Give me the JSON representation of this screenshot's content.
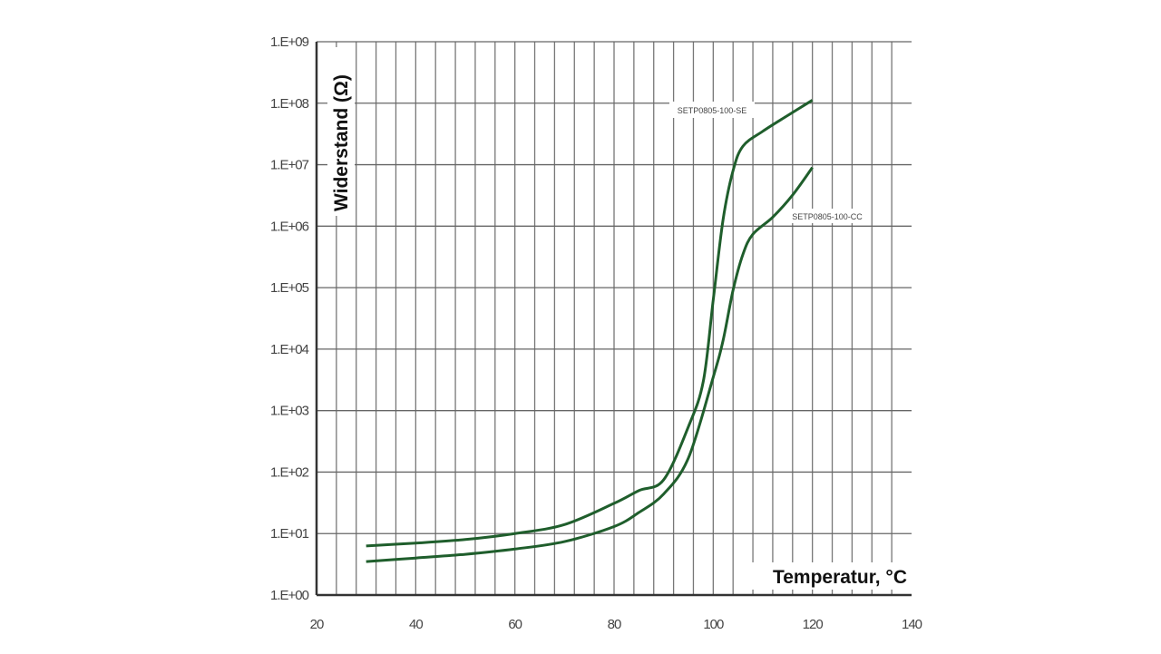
{
  "chart_data": {
    "type": "line",
    "title": "",
    "xlabel": "Temperatur, °C",
    "ylabel": "Widerstand (Ω)",
    "xlim": [
      20,
      140
    ],
    "ylim": [
      1,
      1000000000
    ],
    "yscale": "log",
    "grid": true,
    "x_ticks": [
      "20",
      "40",
      "60",
      "80",
      "100",
      "120",
      "140"
    ],
    "y_ticks": [
      "1.E+00",
      "1.E+01",
      "1.E+02",
      "1.E+03",
      "1.E+04",
      "1.E+05",
      "1.E+06",
      "1.E+07",
      "1.E+08",
      "1.E+09"
    ],
    "line_color": "#1f5e2c",
    "series": [
      {
        "name": "SETP0805-100-SE",
        "x": [
          30,
          40,
          50,
          60,
          70,
          80,
          85,
          90,
          95,
          98,
          100,
          102,
          104,
          106,
          110,
          115,
          120
        ],
        "y": [
          6.3,
          7,
          8,
          10,
          14,
          31,
          50,
          75,
          550,
          3000,
          63000,
          1300000,
          8000000,
          20000000,
          35000000,
          63000000,
          112000000
        ]
      },
      {
        "name": "SETP0805-100-CC",
        "x": [
          30,
          40,
          50,
          60,
          70,
          80,
          85,
          90,
          95,
          100,
          102,
          104,
          106,
          108,
          112,
          116,
          120
        ],
        "y": [
          3.5,
          4,
          4.6,
          5.6,
          7.4,
          13,
          22,
          44,
          170,
          3500,
          14000,
          91000,
          350000,
          740000,
          1400000,
          3200000,
          9000000
        ]
      }
    ]
  }
}
